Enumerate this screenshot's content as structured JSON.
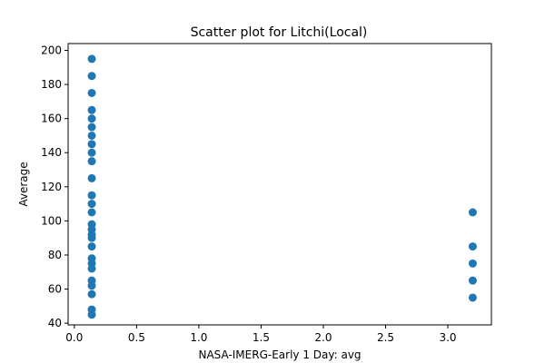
{
  "chart_data": {
    "type": "scatter",
    "title": "Scatter plot for Litchi(Local)",
    "xlabel": "NASA-IMERG-Early 1 Day: avg",
    "ylabel": "Average",
    "xlim": [
      -0.05,
      3.35
    ],
    "ylim": [
      39,
      204
    ],
    "x_ticks": [
      0.0,
      0.5,
      1.0,
      1.5,
      2.0,
      2.5,
      3.0
    ],
    "x_tick_labels": [
      "0.0",
      "0.5",
      "1.0",
      "1.5",
      "2.0",
      "2.5",
      "3.0"
    ],
    "y_ticks": [
      40,
      60,
      80,
      100,
      120,
      140,
      160,
      180,
      200
    ],
    "y_tick_labels": [
      "40",
      "60",
      "80",
      "100",
      "120",
      "140",
      "160",
      "180",
      "200"
    ],
    "grid": false,
    "marker_color": "#1f77b4",
    "points": [
      {
        "x": 0.14,
        "y": 195
      },
      {
        "x": 0.14,
        "y": 185
      },
      {
        "x": 0.14,
        "y": 175
      },
      {
        "x": 0.14,
        "y": 165
      },
      {
        "x": 0.14,
        "y": 160
      },
      {
        "x": 0.14,
        "y": 155
      },
      {
        "x": 0.14,
        "y": 150
      },
      {
        "x": 0.14,
        "y": 145
      },
      {
        "x": 0.14,
        "y": 140
      },
      {
        "x": 0.14,
        "y": 135
      },
      {
        "x": 0.14,
        "y": 125
      },
      {
        "x": 0.14,
        "y": 115
      },
      {
        "x": 0.14,
        "y": 110
      },
      {
        "x": 0.14,
        "y": 105
      },
      {
        "x": 0.14,
        "y": 98
      },
      {
        "x": 0.14,
        "y": 95
      },
      {
        "x": 0.14,
        "y": 92
      },
      {
        "x": 0.14,
        "y": 90
      },
      {
        "x": 0.14,
        "y": 85
      },
      {
        "x": 0.14,
        "y": 78
      },
      {
        "x": 0.14,
        "y": 75
      },
      {
        "x": 0.14,
        "y": 72
      },
      {
        "x": 0.14,
        "y": 65
      },
      {
        "x": 0.14,
        "y": 62
      },
      {
        "x": 0.14,
        "y": 57
      },
      {
        "x": 0.14,
        "y": 48
      },
      {
        "x": 0.14,
        "y": 45
      },
      {
        "x": 3.2,
        "y": 105
      },
      {
        "x": 3.2,
        "y": 85
      },
      {
        "x": 3.2,
        "y": 75
      },
      {
        "x": 3.2,
        "y": 65
      },
      {
        "x": 3.2,
        "y": 55
      }
    ]
  }
}
